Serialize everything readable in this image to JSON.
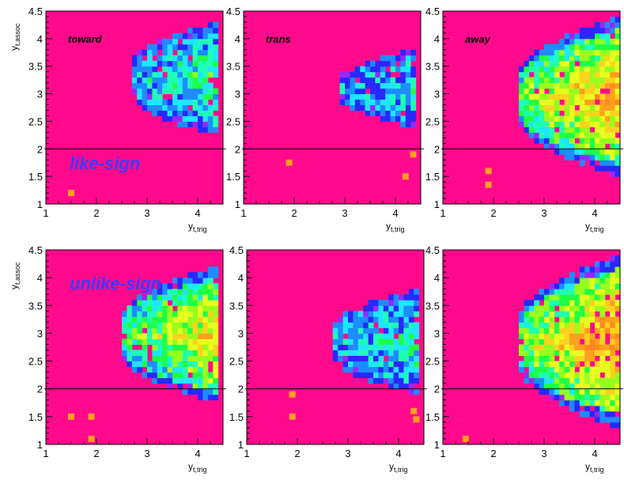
{
  "figure": {
    "description_labels": true
  },
  "colors": {
    "background": "#ff0a8c",
    "hline": "#000000",
    "annotation": "#3b3bff",
    "palette": [
      "#ff8a1e",
      "#ffa01e",
      "#ffd21e",
      "#e6ff1e",
      "#96ff1e",
      "#1eff46",
      "#1effb4",
      "#1ee6ff",
      "#1e8cff",
      "#2828ff",
      "#9628ff"
    ]
  },
  "chart_data": [
    {
      "type": "heatmap",
      "panel": "top-left",
      "title": "toward",
      "annotation": "like-sign",
      "xlabel": "y_t,trig",
      "ylabel": "y_t,assoc",
      "xlim": [
        1,
        4.5
      ],
      "ylim": [
        1,
        4.5
      ],
      "xticks": [
        "1",
        "2",
        "3",
        "4"
      ],
      "yticks": [
        "1",
        "1.5",
        "2",
        "2.5",
        "3",
        "3.5",
        "4",
        "4.5"
      ],
      "hline": 2,
      "region": {
        "x_start": 2.7,
        "x_end": 4.4,
        "y_start": 2.25,
        "y_end": 4.3,
        "peak": 0.45
      },
      "outliers": [
        [
          1.5,
          1.2
        ]
      ]
    },
    {
      "type": "heatmap",
      "panel": "top-middle",
      "title": "trans",
      "annotation": "",
      "xlabel": "y_t,trig",
      "ylabel": "",
      "xlim": [
        1,
        4.5
      ],
      "ylim": [
        1,
        4.5
      ],
      "xticks": [
        "1",
        "2",
        "3",
        "4"
      ],
      "yticks": [
        "1",
        "1.5",
        "2",
        "2.5",
        "3",
        "3.5",
        "4",
        "4.5"
      ],
      "hline": 2,
      "region": {
        "x_start": 2.9,
        "x_end": 4.4,
        "y_start": 2.4,
        "y_end": 3.8,
        "peak": 0.35
      },
      "outliers": [
        [
          1.9,
          1.75
        ],
        [
          4.2,
          1.5
        ],
        [
          4.35,
          1.9
        ]
      ]
    },
    {
      "type": "heatmap",
      "panel": "top-right",
      "title": "away",
      "annotation": "",
      "xlabel": "y_t,trig",
      "ylabel": "",
      "xlim": [
        1,
        4.5
      ],
      "ylim": [
        1,
        4.5
      ],
      "xticks": [
        "1",
        "2",
        "3",
        "4"
      ],
      "yticks": [
        "1",
        "1.5",
        "2",
        "2.5",
        "3",
        "3.5",
        "4",
        "4.5"
      ],
      "hline": 2,
      "region": {
        "x_start": 2.5,
        "x_end": 4.5,
        "y_start": 1.5,
        "y_end": 4.4,
        "peak": 0.95
      },
      "outliers": [
        [
          1.9,
          1.6
        ],
        [
          1.9,
          1.35
        ]
      ]
    },
    {
      "type": "heatmap",
      "panel": "bottom-left",
      "title": "",
      "annotation": "unlike-sign",
      "xlabel": "y_t,trig",
      "ylabel": "y_t,assoc",
      "xlim": [
        1,
        4.5
      ],
      "ylim": [
        1,
        4.5
      ],
      "xticks": [
        "1",
        "2",
        "3",
        "4"
      ],
      "yticks": [
        "1",
        "1.5",
        "2",
        "2.5",
        "3",
        "3.5",
        "4",
        "4.5"
      ],
      "hline": 2,
      "region": {
        "x_start": 2.5,
        "x_end": 4.4,
        "y_start": 1.75,
        "y_end": 4.2,
        "peak": 0.8
      },
      "outliers": [
        [
          1.5,
          1.5
        ],
        [
          1.9,
          1.5
        ],
        [
          1.9,
          1.1
        ]
      ]
    },
    {
      "type": "heatmap",
      "panel": "bottom-middle",
      "title": "",
      "annotation": "",
      "xlabel": "y_t,trig",
      "ylabel": "",
      "xlim": [
        1,
        4.5
      ],
      "ylim": [
        1,
        4.5
      ],
      "xticks": [
        "1",
        "2",
        "3",
        "4"
      ],
      "yticks": [
        "1",
        "1.5",
        "2",
        "2.5",
        "3",
        "3.5",
        "4",
        "4.5"
      ],
      "hline": 2,
      "region": {
        "x_start": 2.7,
        "x_end": 4.4,
        "y_start": 1.9,
        "y_end": 3.8,
        "peak": 0.4
      },
      "outliers": [
        [
          1.9,
          1.9
        ],
        [
          1.9,
          1.5
        ],
        [
          4.3,
          1.6
        ],
        [
          4.35,
          1.45
        ]
      ]
    },
    {
      "type": "heatmap",
      "panel": "bottom-right",
      "title": "",
      "annotation": "",
      "xlabel": "y_t,trig",
      "ylabel": "",
      "xlim": [
        1,
        4.5
      ],
      "ylim": [
        1,
        4.5
      ],
      "xticks": [
        "1",
        "2",
        "3",
        "4"
      ],
      "yticks": [
        "1",
        "1.5",
        "2",
        "2.5",
        "3",
        "3.5",
        "4",
        "4.5"
      ],
      "hline": 2,
      "region": {
        "x_start": 2.5,
        "x_end": 4.5,
        "y_start": 1.3,
        "y_end": 4.4,
        "peak": 1.0
      },
      "outliers": [
        [
          1.45,
          1.1
        ]
      ]
    }
  ]
}
